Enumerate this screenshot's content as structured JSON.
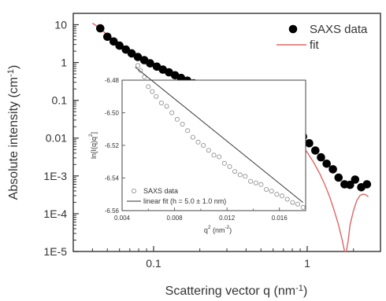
{
  "chart_data": [
    {
      "id": "main",
      "type": "scatter",
      "xlabel": "Scattering vector q (nm",
      "xlabel_sup": "-1",
      "xlabel_suffix": ")",
      "ylabel": "Absolute intensity (cm",
      "ylabel_sup": "-1",
      "ylabel_suffix": ")",
      "xscale": "log",
      "yscale": "log",
      "xlim": [
        0.03,
        3.0
      ],
      "ylim": [
        1e-05,
        20
      ],
      "x_ticks": [
        {
          "value": 0.1,
          "label": "0.1"
        },
        {
          "value": 1,
          "label": "1"
        }
      ],
      "y_ticks": [
        {
          "value": 10,
          "label": "10"
        },
        {
          "value": 1,
          "label": "1"
        },
        {
          "value": 0.1,
          "label": "0.1"
        },
        {
          "value": 0.01,
          "label": "0.01"
        },
        {
          "value": 0.001,
          "label": "1E-3"
        },
        {
          "value": 0.0001,
          "label": "1E-4"
        },
        {
          "value": 1e-05,
          "label": "1E-5"
        }
      ],
      "legend_position": "top-right",
      "series": [
        {
          "name": "SAXS data",
          "kind": "markers",
          "color": "#000000",
          "points": [
            [
              0.045,
              8.0
            ],
            [
              0.05,
              4.8
            ],
            [
              0.055,
              3.6
            ],
            [
              0.06,
              2.8
            ],
            [
              0.066,
              2.2
            ],
            [
              0.072,
              1.75
            ],
            [
              0.079,
              1.4
            ],
            [
              0.087,
              1.15
            ],
            [
              0.095,
              0.95
            ],
            [
              0.105,
              0.78
            ],
            [
              0.115,
              0.65
            ],
            [
              0.126,
              0.55
            ],
            [
              0.138,
              0.46
            ],
            [
              0.151,
              0.39
            ],
            [
              0.166,
              0.33
            ],
            [
              0.182,
              0.28
            ],
            [
              0.2,
              0.24
            ],
            [
              0.22,
              0.205
            ],
            [
              0.24,
              0.175
            ],
            [
              0.265,
              0.15
            ],
            [
              0.29,
              0.13
            ],
            [
              0.318,
              0.115
            ],
            [
              0.35,
              0.1
            ],
            [
              0.38,
              0.09
            ],
            [
              0.42,
              0.08
            ],
            [
              0.46,
              0.072
            ],
            [
              0.5,
              0.065
            ],
            [
              0.55,
              0.056
            ],
            [
              0.6,
              0.047
            ],
            [
              0.66,
              0.038
            ],
            [
              0.72,
              0.03
            ],
            [
              0.79,
              0.023
            ],
            [
              0.86,
              0.016
            ],
            [
              0.94,
              0.011
            ],
            [
              1.03,
              0.0073
            ],
            [
              1.13,
              0.0047
            ],
            [
              1.23,
              0.0031
            ],
            [
              1.34,
              0.0021
            ],
            [
              1.47,
              0.0015
            ],
            [
              1.6,
              0.0009
            ],
            [
              1.75,
              0.0006
            ],
            [
              1.9,
              0.00058
            ],
            [
              2.05,
              0.0008
            ],
            [
              2.25,
              0.0005
            ],
            [
              2.45,
              0.0006
            ]
          ]
        },
        {
          "name": "fit",
          "kind": "line",
          "color": "#e06666",
          "points": [
            [
              0.04,
              11.0
            ],
            [
              0.045,
              8.0
            ],
            [
              0.05,
              5.3
            ],
            [
              0.06,
              3.0
            ],
            [
              0.07,
              1.95
            ],
            [
              0.08,
              1.4
            ],
            [
              0.1,
              0.9
            ],
            [
              0.12,
              0.62
            ],
            [
              0.15,
              0.4
            ],
            [
              0.2,
              0.24
            ],
            [
              0.25,
              0.16
            ],
            [
              0.3,
              0.12
            ],
            [
              0.35,
              0.095
            ],
            [
              0.4,
              0.077
            ],
            [
              0.45,
              0.064
            ],
            [
              0.5,
              0.052
            ],
            [
              0.6,
              0.033
            ],
            [
              0.7,
              0.02
            ],
            [
              0.8,
              0.012
            ],
            [
              0.9,
              0.0072
            ],
            [
              1.0,
              0.0042
            ],
            [
              1.1,
              0.0023
            ],
            [
              1.2,
              0.0012
            ],
            [
              1.3,
              0.0006
            ],
            [
              1.4,
              0.00028
            ],
            [
              1.5,
              0.00012
            ],
            [
              1.6,
              5e-05
            ],
            [
              1.7,
              1.8e-05
            ],
            [
              1.75,
              1e-05
            ],
            [
              1.8,
              1e-05
            ],
            [
              1.85,
              2e-05
            ],
            [
              1.9,
              5e-05
            ],
            [
              2.0,
              0.00012
            ],
            [
              2.1,
              0.00022
            ],
            [
              2.2,
              0.0003
            ],
            [
              2.3,
              0.00033
            ],
            [
              2.4,
              0.00032
            ],
            [
              2.5,
              0.00028
            ]
          ]
        }
      ]
    },
    {
      "id": "inset",
      "type": "scatter",
      "xlabel": "q",
      "xlabel_sup": "2",
      "xlabel_suffix": " (nm",
      "xlabel_sup2": "-2",
      "xlabel_suffix2": ")",
      "ylabel": "ln[I(q)q",
      "ylabel_sup": "2",
      "ylabel_suffix": "]",
      "xlim": [
        0.004,
        0.018
      ],
      "ylim": [
        -6.56,
        -6.48
      ],
      "x_ticks": [
        {
          "value": 0.004,
          "label": "0.004"
        },
        {
          "value": 0.008,
          "label": "0.008"
        },
        {
          "value": 0.012,
          "label": "0.012"
        },
        {
          "value": 0.016,
          "label": "0.016"
        }
      ],
      "y_ticks": [
        {
          "value": -6.48,
          "label": "-6.48"
        },
        {
          "value": -6.5,
          "label": "-6.50"
        },
        {
          "value": -6.52,
          "label": "-6.52"
        },
        {
          "value": -6.54,
          "label": "-6.54"
        },
        {
          "value": -6.56,
          "label": "-6.56"
        }
      ],
      "legend_position": "bottom-left",
      "series": [
        {
          "name": "SAXS data",
          "kind": "open-markers",
          "color": "#888888",
          "points": [
            [
              0.0052,
              -6.471
            ],
            [
              0.0054,
              -6.474
            ],
            [
              0.0057,
              -6.478
            ],
            [
              0.006,
              -6.484
            ],
            [
              0.0063,
              -6.487
            ],
            [
              0.0066,
              -6.49
            ],
            [
              0.007,
              -6.494
            ],
            [
              0.0074,
              -6.496
            ],
            [
              0.0078,
              -6.5
            ],
            [
              0.0082,
              -6.504
            ],
            [
              0.0086,
              -6.507
            ],
            [
              0.009,
              -6.511
            ],
            [
              0.0094,
              -6.515
            ],
            [
              0.0098,
              -6.518
            ],
            [
              0.0102,
              -6.52
            ],
            [
              0.0106,
              -6.523
            ],
            [
              0.011,
              -6.526
            ],
            [
              0.0114,
              -6.527
            ],
            [
              0.0118,
              -6.531
            ],
            [
              0.0122,
              -6.533
            ],
            [
              0.0126,
              -6.536
            ],
            [
              0.013,
              -6.538
            ],
            [
              0.0134,
              -6.539
            ],
            [
              0.0138,
              -6.542
            ],
            [
              0.0142,
              -6.543
            ],
            [
              0.0146,
              -6.544
            ],
            [
              0.015,
              -6.547
            ],
            [
              0.0154,
              -6.548
            ],
            [
              0.0158,
              -6.55
            ],
            [
              0.0162,
              -6.551
            ],
            [
              0.0166,
              -6.553
            ],
            [
              0.017,
              -6.555
            ],
            [
              0.0174,
              -6.556
            ],
            [
              0.0178,
              -6.558
            ]
          ]
        },
        {
          "name": "linear fit (h = 5.0 ± 1.0 nm)",
          "kind": "line",
          "color": "#333333",
          "points": [
            [
              0.005,
              -6.472
            ],
            [
              0.0178,
              -6.555
            ]
          ]
        }
      ]
    }
  ]
}
